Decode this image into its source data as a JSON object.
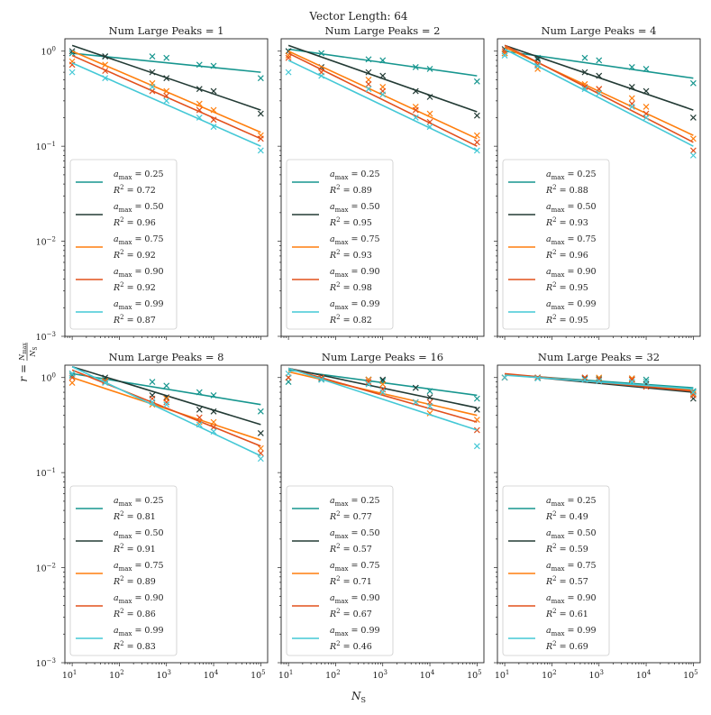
{
  "chart_data": {
    "type": "scatter",
    "suptitle": "Vector Length: 64",
    "xlabel": "N_S",
    "ylabel": "r = N_max / N_S",
    "xscale": "log",
    "yscale": "log",
    "xlim": [
      7,
      140000
    ],
    "ylim": [
      0.001,
      1.35
    ],
    "x_tick_labels": [
      "10^1",
      "10^2",
      "10^3",
      "10^4",
      "10^5"
    ],
    "y_tick_labels": [
      "10^-3",
      "10^-2",
      "10^-1",
      "10^0"
    ],
    "x": [
      10,
      50,
      500,
      1000,
      5000,
      10000,
      100000
    ],
    "series_colors": [
      "#17968f",
      "#233b35",
      "#ff7f0e",
      "#e2501c",
      "#44c8d6"
    ],
    "panels": [
      {
        "title": "Num Large Peaks = 1",
        "series": [
          {
            "a_max": "0.25",
            "r2": "0.72",
            "points": [
              0.95,
              0.88,
              0.88,
              0.85,
              0.72,
              0.7,
              0.52
            ],
            "fit": [
              0.95,
              0.6
            ]
          },
          {
            "a_max": "0.50",
            "r2": "0.96",
            "points": [
              1.0,
              0.88,
              0.6,
              0.52,
              0.4,
              0.38,
              0.22
            ],
            "fit": [
              1.15,
              0.24
            ]
          },
          {
            "a_max": "0.75",
            "r2": "0.92",
            "points": [
              0.78,
              0.72,
              0.46,
              0.38,
              0.28,
              0.24,
              0.13
            ],
            "fit": [
              1.0,
              0.14
            ]
          },
          {
            "a_max": "0.90",
            "r2": "0.92",
            "points": [
              0.72,
              0.62,
              0.38,
              0.34,
              0.24,
              0.19,
              0.12
            ],
            "fit": [
              0.9,
              0.12
            ]
          },
          {
            "a_max": "0.99",
            "r2": "0.87",
            "points": [
              0.6,
              0.52,
              0.42,
              0.3,
              0.2,
              0.16,
              0.09
            ],
            "fit": [
              0.75,
              0.1
            ]
          }
        ]
      },
      {
        "title": "Num Large Peaks = 2",
        "series": [
          {
            "a_max": "0.25",
            "r2": "0.89",
            "points": [
              1.0,
              0.95,
              0.82,
              0.8,
              0.68,
              0.65,
              0.48
            ],
            "fit": [
              1.05,
              0.55
            ]
          },
          {
            "a_max": "0.50",
            "r2": "0.95",
            "points": [
              1.0,
              0.68,
              0.6,
              0.55,
              0.38,
              0.33,
              0.21
            ],
            "fit": [
              1.15,
              0.23
            ]
          },
          {
            "a_max": "0.75",
            "r2": "0.93",
            "points": [
              0.9,
              0.6,
              0.5,
              0.42,
              0.26,
              0.22,
              0.13
            ],
            "fit": [
              1.0,
              0.12
            ]
          },
          {
            "a_max": "0.90",
            "r2": "0.98",
            "points": [
              0.85,
              0.6,
              0.45,
              0.38,
              0.24,
              0.18,
              0.11
            ],
            "fit": [
              0.95,
              0.1
            ]
          },
          {
            "a_max": "0.99",
            "r2": "0.82",
            "points": [
              0.6,
              0.55,
              0.4,
              0.35,
              0.2,
              0.16,
              0.09
            ],
            "fit": [
              0.8,
              0.09
            ]
          }
        ]
      },
      {
        "title": "Num Large Peaks = 4",
        "series": [
          {
            "a_max": "0.25",
            "r2": "0.88",
            "points": [
              0.95,
              0.85,
              0.85,
              0.8,
              0.68,
              0.65,
              0.46
            ],
            "fit": [
              1.0,
              0.52
            ]
          },
          {
            "a_max": "0.50",
            "r2": "0.93",
            "points": [
              1.05,
              0.82,
              0.6,
              0.55,
              0.42,
              0.38,
              0.2
            ],
            "fit": [
              1.15,
              0.24
            ]
          },
          {
            "a_max": "0.75",
            "r2": "0.96",
            "points": [
              0.95,
              0.65,
              0.45,
              0.4,
              0.32,
              0.26,
              0.12
            ],
            "fit": [
              1.1,
              0.13
            ]
          },
          {
            "a_max": "0.90",
            "r2": "0.95",
            "points": [
              1.0,
              0.72,
              0.42,
              0.4,
              0.28,
              0.22,
              0.09
            ],
            "fit": [
              1.15,
              0.11
            ]
          },
          {
            "a_max": "0.99",
            "r2": "0.95",
            "points": [
              0.9,
              0.7,
              0.4,
              0.36,
              0.26,
              0.2,
              0.08
            ],
            "fit": [
              1.05,
              0.1
            ]
          }
        ]
      },
      {
        "title": "Num Large Peaks = 8",
        "series": [
          {
            "a_max": "0.25",
            "r2": "0.81",
            "points": [
              1.05,
              0.95,
              0.9,
              0.82,
              0.7,
              0.65,
              0.44
            ],
            "fit": [
              1.1,
              0.52
            ]
          },
          {
            "a_max": "0.50",
            "r2": "0.91",
            "points": [
              1.1,
              1.0,
              0.65,
              0.62,
              0.46,
              0.44,
              0.26
            ],
            "fit": [
              1.3,
              0.32
            ]
          },
          {
            "a_max": "0.75",
            "r2": "0.89",
            "points": [
              0.88,
              0.92,
              0.52,
              0.6,
              0.34,
              0.34,
              0.18
            ],
            "fit": [
              1.0,
              0.22
            ]
          },
          {
            "a_max": "0.90",
            "r2": "0.86",
            "points": [
              1.0,
              0.9,
              0.6,
              0.55,
              0.38,
              0.3,
              0.16
            ],
            "fit": [
              1.2,
              0.19
            ]
          },
          {
            "a_max": "0.99",
            "r2": "0.83",
            "points": [
              1.1,
              0.88,
              0.55,
              0.52,
              0.32,
              0.27,
              0.14
            ],
            "fit": [
              1.3,
              0.15
            ]
          }
        ]
      },
      {
        "title": "Num Large Peaks = 16",
        "series": [
          {
            "a_max": "0.25",
            "r2": "0.77",
            "points": [
              0.9,
              0.98,
              0.95,
              0.92,
              0.78,
              0.72,
              0.6
            ],
            "fit": [
              1.2,
              0.65
            ]
          },
          {
            "a_max": "0.50",
            "r2": "0.57",
            "points": [
              1.0,
              0.95,
              0.95,
              0.95,
              0.78,
              0.62,
              0.46
            ],
            "fit": [
              1.25,
              0.48
            ]
          },
          {
            "a_max": "0.75",
            "r2": "0.71",
            "points": [
              1.0,
              1.0,
              0.95,
              0.85,
              0.55,
              0.42,
              0.36
            ],
            "fit": [
              1.15,
              0.4
            ]
          },
          {
            "a_max": "0.90",
            "r2": "0.67",
            "points": [
              1.0,
              1.0,
              0.9,
              0.75,
              0.55,
              0.55,
              0.28
            ],
            "fit": [
              1.25,
              0.34
            ]
          },
          {
            "a_max": "0.99",
            "r2": "0.46",
            "points": [
              1.1,
              0.95,
              0.85,
              0.7,
              0.55,
              0.5,
              0.19
            ],
            "fit": [
              1.25,
              0.28
            ]
          }
        ]
      },
      {
        "title": "Num Large Peaks = 32",
        "series": [
          {
            "a_max": "0.25",
            "r2": "0.49",
            "points": [
              1.0,
              1.0,
              1.0,
              0.98,
              0.98,
              0.95,
              0.72
            ],
            "fit": [
              1.08,
              0.78
            ]
          },
          {
            "a_max": "0.50",
            "r2": "0.59",
            "points": [
              1.0,
              1.0,
              0.98,
              0.95,
              0.95,
              0.85,
              0.6
            ],
            "fit": [
              1.08,
              0.7
            ]
          },
          {
            "a_max": "0.75",
            "r2": "0.57",
            "points": [
              1.0,
              1.0,
              1.0,
              1.0,
              0.98,
              0.9,
              0.68
            ],
            "fit": [
              1.08,
              0.74
            ]
          },
          {
            "a_max": "0.90",
            "r2": "0.61",
            "points": [
              1.0,
              1.0,
              1.0,
              0.95,
              0.95,
              0.8,
              0.65
            ],
            "fit": [
              1.1,
              0.72
            ]
          },
          {
            "a_max": "0.99",
            "r2": "0.69",
            "points": [
              1.0,
              0.98,
              0.95,
              0.92,
              0.9,
              0.9,
              0.7
            ],
            "fit": [
              1.06,
              0.76
            ]
          }
        ]
      }
    ]
  }
}
